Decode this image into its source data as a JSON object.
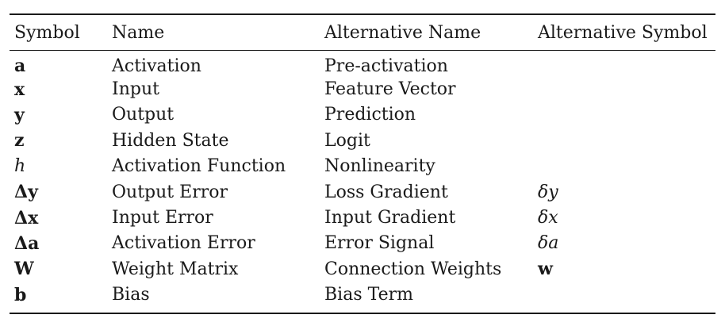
{
  "table": {
    "headers": [
      "Symbol",
      "Name",
      "Alternative Name",
      "Alternative Symbol"
    ],
    "rows": [
      {
        "symbol": "a",
        "symbol_style": "bold",
        "name": "Activation",
        "alt_name": "Pre-activation",
        "alt_symbol": "",
        "alt_symbol_style": ""
      },
      {
        "symbol": "x",
        "symbol_style": "bold",
        "name": "Input",
        "alt_name": "Feature Vector",
        "alt_symbol": "",
        "alt_symbol_style": ""
      },
      {
        "symbol": "y",
        "symbol_style": "bold",
        "name": "Output",
        "alt_name": "Prediction",
        "alt_symbol": "",
        "alt_symbol_style": ""
      },
      {
        "symbol": "z",
        "symbol_style": "bold",
        "name": "Hidden State",
        "alt_name": "Logit",
        "alt_symbol": "",
        "alt_symbol_style": ""
      },
      {
        "symbol": "h",
        "symbol_style": "italic",
        "name": "Activation Function",
        "alt_name": "Nonlinearity",
        "alt_symbol": "",
        "alt_symbol_style": ""
      },
      {
        "symbol": "Δy",
        "symbol_style": "bold",
        "name": "Output Error",
        "alt_name": "Loss Gradient",
        "alt_symbol": "δy",
        "alt_symbol_style": "italic"
      },
      {
        "symbol": "Δx",
        "symbol_style": "bold",
        "name": "Input Error",
        "alt_name": "Input Gradient",
        "alt_symbol": "δx",
        "alt_symbol_style": "italic"
      },
      {
        "symbol": "Δa",
        "symbol_style": "bold",
        "name": "Activation Error",
        "alt_name": "Error Signal",
        "alt_symbol": "δa",
        "alt_symbol_style": "italic"
      },
      {
        "symbol": "W",
        "symbol_style": "bold",
        "name": "Weight Matrix",
        "alt_name": "Connection Weights",
        "alt_symbol": "w",
        "alt_symbol_style": "bold"
      },
      {
        "symbol": "b",
        "symbol_style": "bold",
        "name": "Bias",
        "alt_name": "Bias Term",
        "alt_symbol": "",
        "alt_symbol_style": ""
      }
    ]
  }
}
